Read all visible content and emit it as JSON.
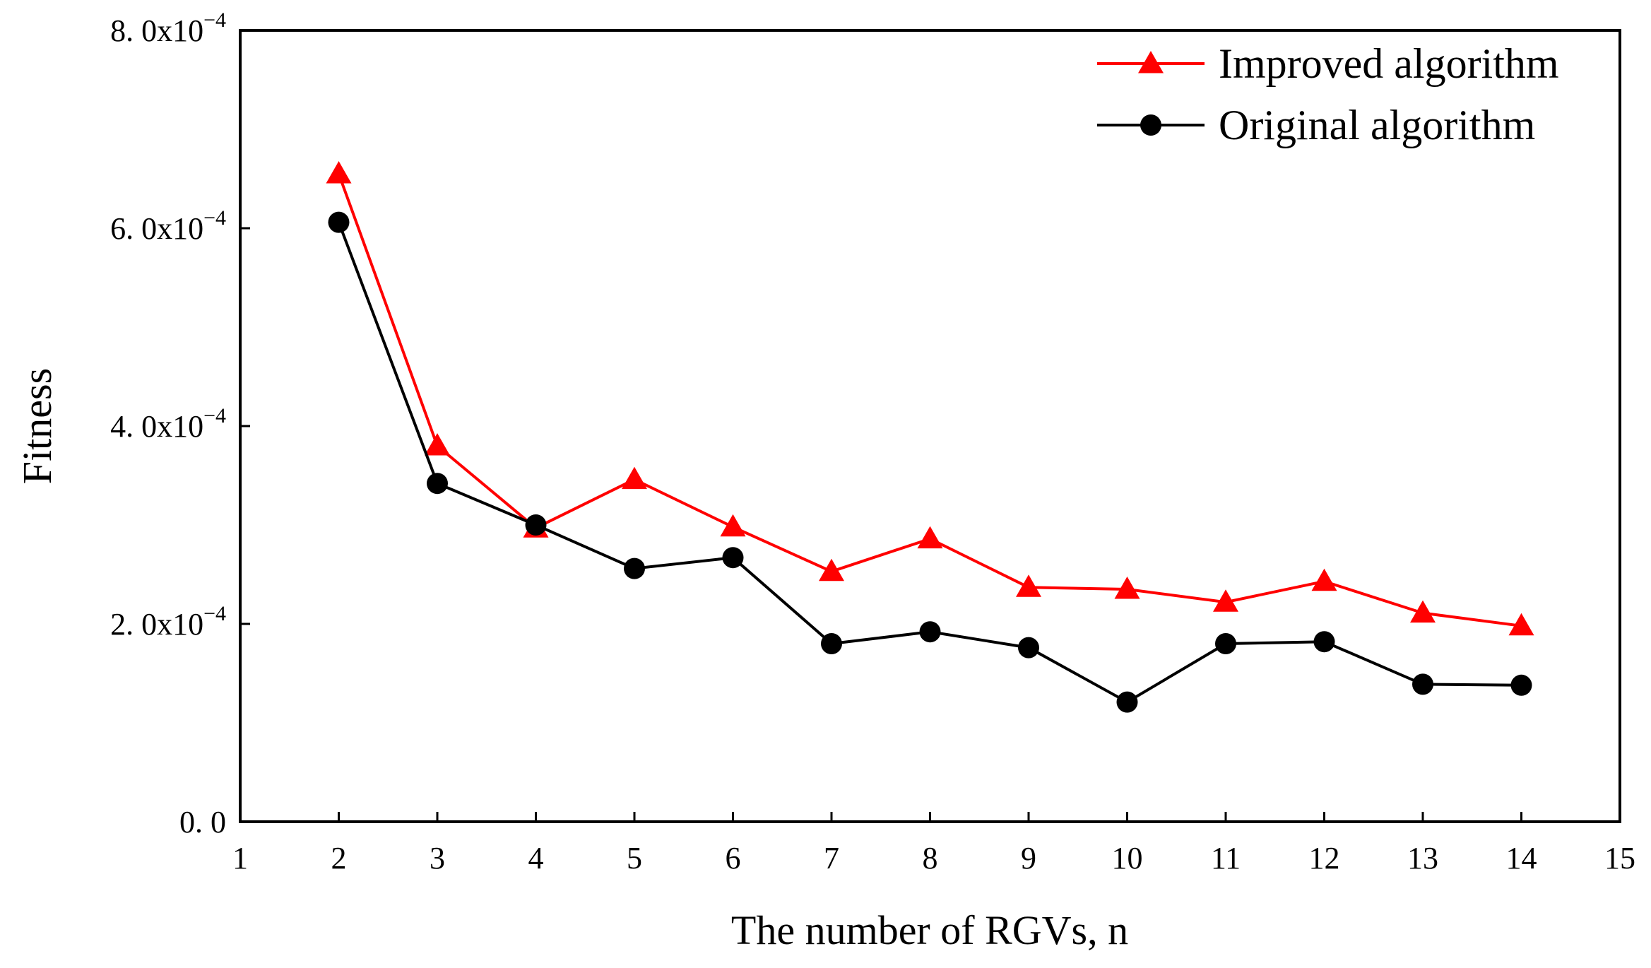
{
  "chart_data": {
    "type": "line",
    "title": "",
    "xlabel": "The number of RGVs, n",
    "ylabel": "Fitness",
    "xlim": [
      1,
      15
    ],
    "ylim": [
      0,
      0.0008
    ],
    "x_ticks": [
      1,
      2,
      3,
      4,
      5,
      6,
      7,
      8,
      9,
      10,
      11,
      12,
      13,
      14,
      15
    ],
    "y_ticks": [
      {
        "value": 0.0,
        "mantissa": "0. 0",
        "exponent": ""
      },
      {
        "value": 0.0002,
        "mantissa": "2. 0x10",
        "exponent": "−4"
      },
      {
        "value": 0.0004,
        "mantissa": "4. 0x10",
        "exponent": "−4"
      },
      {
        "value": 0.0006,
        "mantissa": "6. 0x10",
        "exponent": "−4"
      },
      {
        "value": 0.0008,
        "mantissa": "8. 0x10",
        "exponent": "−4"
      }
    ],
    "legend_position": "top-right",
    "grid": false,
    "x": [
      2,
      3,
      4,
      5,
      6,
      7,
      8,
      9,
      10,
      11,
      12,
      13,
      14
    ],
    "series": [
      {
        "name": "Improved algorithm",
        "color": "#ff0000",
        "marker": "triangle",
        "values": [
          0.000655,
          0.00038,
          0.000297,
          0.000346,
          0.000298,
          0.000253,
          0.000286,
          0.000237,
          0.000235,
          0.000222,
          0.000243,
          0.000211,
          0.000198
        ]
      },
      {
        "name": "Original algorithm",
        "color": "#000000",
        "marker": "circle",
        "values": [
          0.000606,
          0.000342,
          0.0003,
          0.000256,
          0.000267,
          0.00018,
          0.000192,
          0.000176,
          0.000121,
          0.00018,
          0.000182,
          0.000139,
          0.000138
        ]
      }
    ]
  }
}
